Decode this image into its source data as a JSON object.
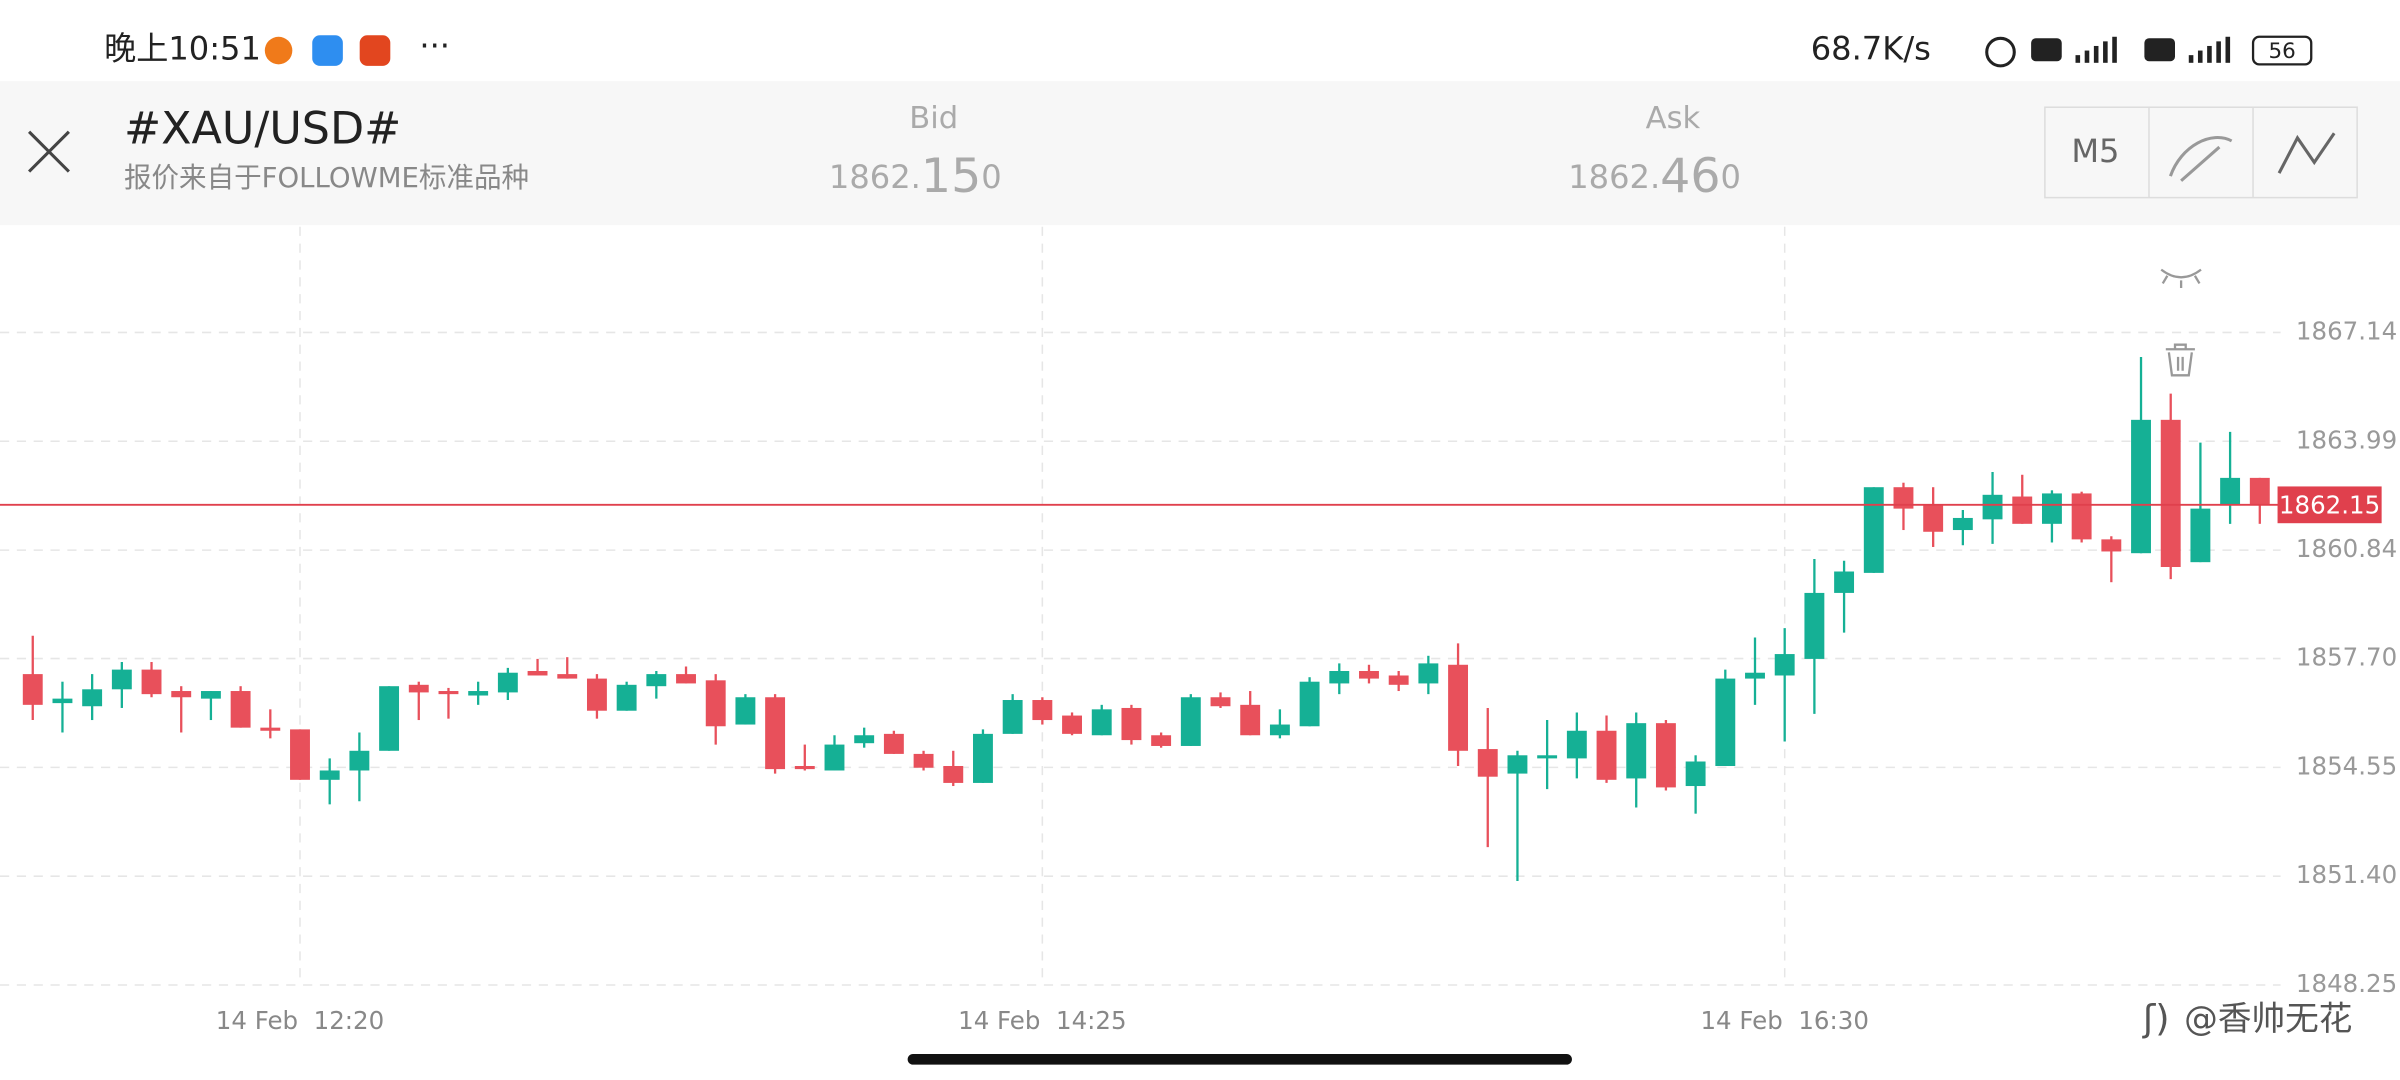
{
  "status_bar": {
    "time": "晚上10:51",
    "speed": "68.7K/s",
    "battery": "56"
  },
  "header": {
    "title": "#XAU/USD#",
    "subtitle": "报价来自于FOLLOWME标准品种",
    "bid_label": "Bid",
    "bid": "1862.150",
    "ask_label": "Ask",
    "ask": "1862.460",
    "timeframe": "M5"
  },
  "watermark": "@香帅无花",
  "chart_data": {
    "type": "candlestick",
    "categories": [
      null,
      null,
      null,
      null,
      null,
      null,
      null,
      null,
      null,
      "14 Feb  12:20",
      null,
      null,
      null,
      null,
      null,
      null,
      null,
      null,
      null,
      null,
      null,
      null,
      null,
      null,
      null,
      null,
      null,
      null,
      null,
      null,
      null,
      null,
      null,
      null,
      "14 Feb  14:25",
      null,
      null,
      null,
      null,
      null,
      null,
      null,
      null,
      null,
      null,
      null,
      null,
      null,
      null,
      null,
      null,
      null,
      null,
      null,
      null,
      null,
      null,
      null,
      null,
      "14 Feb  16:30",
      null,
      null,
      null,
      null,
      null,
      null,
      null,
      null,
      null,
      null,
      null,
      null,
      null,
      null,
      null,
      null
    ],
    "open": [
      1857.25,
      1856.41,
      1856.32,
      1856.81,
      1857.38,
      1856.76,
      1856.54,
      1856.76,
      1855.7,
      1855.65,
      1854.19,
      1854.46,
      1855.03,
      1856.94,
      1856.76,
      1856.63,
      1856.72,
      1857.34,
      1857.25,
      1857.12,
      1856.19,
      1856.9,
      1857.25,
      1857.07,
      1855.79,
      1856.58,
      1854.59,
      1854.46,
      1855.25,
      1855.52,
      1854.94,
      1854.59,
      1854.1,
      1855.52,
      1856.5,
      1856.05,
      1855.48,
      1856.27,
      1855.48,
      1855.17,
      1856.58,
      1856.36,
      1855.48,
      1855.74,
      1856.98,
      1857.34,
      1857.21,
      1856.98,
      1857.52,
      1855.08,
      1854.37,
      1854.81,
      1854.81,
      1855.61,
      1854.23,
      1855.83,
      1854.01,
      1854.59,
      1857.12,
      1857.21,
      1857.69,
      1859.6,
      1860.18,
      1862.66,
      1862.13,
      1861.42,
      1861.73,
      1862.39,
      1861.6,
      1862.48,
      1861.15,
      1860.75,
      1864.61,
      1860.49,
      1862.13,
      1862.93
    ],
    "high": [
      1858.36,
      1857.03,
      1857.25,
      1857.6,
      1857.6,
      1856.9,
      1856.76,
      1856.9,
      1856.23,
      1855.65,
      1854.81,
      1855.56,
      1856.9,
      1857.03,
      1856.85,
      1857.03,
      1857.43,
      1857.69,
      1857.74,
      1857.25,
      1857.03,
      1857.34,
      1857.47,
      1857.25,
      1856.67,
      1856.67,
      1855.21,
      1855.48,
      1855.7,
      1855.61,
      1855.03,
      1855.03,
      1855.65,
      1856.67,
      1856.58,
      1856.14,
      1856.36,
      1856.36,
      1855.56,
      1856.67,
      1856.72,
      1856.76,
      1856.23,
      1857.16,
      1857.56,
      1857.52,
      1857.34,
      1857.78,
      1858.14,
      1856.27,
      1855.03,
      1855.92,
      1856.14,
      1856.05,
      1856.14,
      1855.92,
      1854.9,
      1857.38,
      1858.31,
      1858.58,
      1860.58,
      1860.53,
      1862.66,
      1862.79,
      1862.66,
      1862.0,
      1863.1,
      1863.02,
      1862.57,
      1862.53,
      1861.24,
      1866.43,
      1865.37,
      1863.95,
      1864.26,
      1862.93
    ],
    "low": [
      1855.92,
      1855.56,
      1855.92,
      1856.27,
      1856.58,
      1855.56,
      1855.92,
      1855.7,
      1855.39,
      1854.19,
      1853.48,
      1853.57,
      1855.03,
      1855.92,
      1855.96,
      1856.36,
      1856.5,
      1857.21,
      1857.12,
      1855.96,
      1856.19,
      1856.54,
      1856.98,
      1855.21,
      1855.79,
      1854.37,
      1854.46,
      1854.46,
      1855.12,
      1854.94,
      1854.46,
      1854.01,
      1854.1,
      1855.52,
      1855.79,
      1855.48,
      1855.48,
      1855.21,
      1855.12,
      1855.17,
      1856.27,
      1855.48,
      1855.39,
      1855.74,
      1856.67,
      1856.98,
      1856.76,
      1856.67,
      1854.59,
      1852.24,
      1851.26,
      1853.92,
      1854.23,
      1854.1,
      1853.39,
      1853.88,
      1853.21,
      1854.59,
      1856.36,
      1855.3,
      1856.1,
      1858.45,
      1860.18,
      1861.42,
      1860.93,
      1860.98,
      1861.02,
      1861.6,
      1861.06,
      1861.06,
      1859.91,
      1860.75,
      1860.0,
      1860.49,
      1861.6,
      1861.6
    ],
    "close": [
      1856.36,
      1856.54,
      1856.81,
      1857.38,
      1856.67,
      1856.58,
      1856.76,
      1855.7,
      1855.61,
      1854.19,
      1854.46,
      1855.03,
      1856.9,
      1856.72,
      1856.67,
      1856.76,
      1857.29,
      1857.21,
      1857.12,
      1856.19,
      1856.94,
      1857.25,
      1856.98,
      1855.74,
      1856.58,
      1854.5,
      1854.5,
      1855.21,
      1855.48,
      1854.94,
      1854.54,
      1854.1,
      1855.52,
      1856.5,
      1855.92,
      1855.52,
      1856.23,
      1855.34,
      1855.17,
      1856.58,
      1856.32,
      1855.48,
      1855.79,
      1857.03,
      1857.34,
      1857.12,
      1856.94,
      1857.56,
      1855.03,
      1854.28,
      1854.9,
      1854.9,
      1855.61,
      1854.19,
      1855.83,
      1853.97,
      1854.72,
      1857.12,
      1857.29,
      1857.83,
      1859.6,
      1860.22,
      1862.66,
      1862.04,
      1861.37,
      1861.77,
      1862.44,
      1861.6,
      1862.48,
      1861.15,
      1860.8,
      1864.61,
      1860.35,
      1862.04,
      1862.93,
      1862.15
    ],
    "up_color": "#15b095",
    "down_color": "#e8505b",
    "ylim": [
      1848.25,
      1870.2
    ],
    "yticks": [
      1848.25,
      {
        "value": 1851.4,
        "label": "1851.40"
      },
      1854.55,
      {
        "value": 1857.7,
        "label": "1857.70"
      },
      1860.84,
      1863.99,
      1867.14
    ],
    "grid": true,
    "current_price": 1862.15,
    "current_price_color": "#e0404d"
  }
}
